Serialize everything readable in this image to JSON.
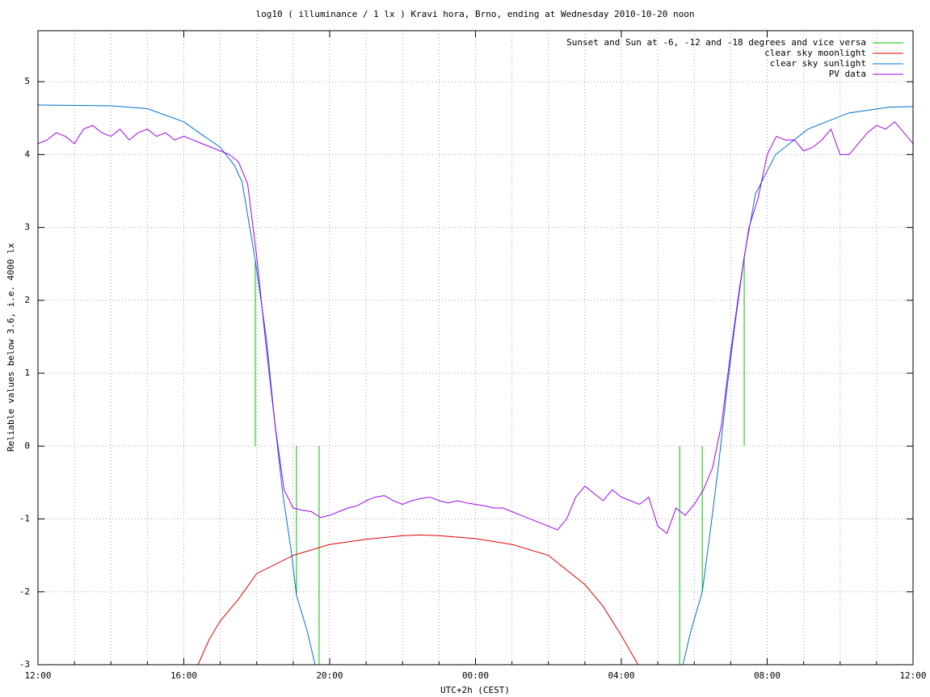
{
  "chart_data": {
    "type": "line",
    "title": "log10 ( illuminance / 1 lx ) Kravi hora, Brno, ending at Wednesday 2010-10-20 noon",
    "xlabel": "UTC+2h (CEST)",
    "ylabel": "Reliable values below 3.6, i.e. 4000 lx",
    "xlim": [
      0,
      24
    ],
    "ylim": [
      -3,
      5.7
    ],
    "xticks": [
      {
        "value": 0,
        "label": "12:00"
      },
      {
        "value": 4,
        "label": "16:00"
      },
      {
        "value": 8,
        "label": "20:00"
      },
      {
        "value": 12,
        "label": "00:00"
      },
      {
        "value": 16,
        "label": "04:00"
      },
      {
        "value": 20,
        "label": "08:00"
      },
      {
        "value": 24,
        "label": "12:00"
      }
    ],
    "xminorticks": [
      1,
      2,
      3,
      5,
      6,
      7,
      9,
      10,
      11,
      13,
      14,
      15,
      17,
      18,
      19,
      21,
      22,
      23
    ],
    "yticks": [
      -3,
      -2,
      -1,
      0,
      1,
      2,
      3,
      4,
      5
    ],
    "grid": true,
    "legend": "top-right",
    "series": [
      {
        "name": "Sunset and Sun at -6, -12 and -18 degrees and vice versa",
        "color": "#00c000",
        "style": "impulses",
        "x": [
          5.96,
          7.09,
          7.71,
          17.6,
          18.22,
          19.37
        ],
        "values": [
          2.55,
          -2.05,
          -3,
          -3,
          -2.0,
          2.6
        ]
      },
      {
        "name": "clear sky moonlight",
        "color": "#e00000",
        "style": "lines",
        "x": [
          4.39,
          4.7,
          5,
          5.5,
          6,
          7,
          8,
          9,
          10,
          10.5,
          11,
          12,
          13,
          14,
          15,
          15.5,
          16,
          16.46
        ],
        "values": [
          -3,
          -2.65,
          -2.4,
          -2.1,
          -1.75,
          -1.5,
          -1.35,
          -1.28,
          -1.23,
          -1.22,
          -1.23,
          -1.27,
          -1.35,
          -1.5,
          -1.9,
          -2.2,
          -2.6,
          -3
        ]
      },
      {
        "name": "clear sky sunlight",
        "color": "#0070d0",
        "style": "lines",
        "x": [
          0,
          2,
          3,
          4,
          4.39,
          5,
          5.39,
          5.6,
          5.96,
          6.27,
          6.49,
          6.71,
          6.94,
          7.09,
          7.38,
          7.6,
          12,
          17.69,
          17.9,
          18.22,
          18.46,
          18.68,
          18.9,
          19.12,
          19.37,
          19.68,
          20.23,
          21.12,
          22.23,
          23.33,
          24
        ],
        "values": [
          4.68,
          4.67,
          4.63,
          4.45,
          4.31,
          4.1,
          3.85,
          3.62,
          2.55,
          1.46,
          0.35,
          -0.64,
          -1.42,
          -2.05,
          -2.53,
          -3,
          null,
          -3,
          -2.55,
          -2.0,
          -1.09,
          -0.2,
          0.8,
          1.68,
          2.6,
          3.46,
          4.0,
          4.35,
          4.57,
          4.65,
          4.66
        ]
      },
      {
        "name": "PV data",
        "color": "#a000f0",
        "style": "lines",
        "x": [
          0,
          0.25,
          0.5,
          0.75,
          1,
          1.25,
          1.5,
          1.75,
          2,
          2.25,
          2.5,
          2.75,
          3,
          3.25,
          3.5,
          3.75,
          4,
          4.25,
          4.5,
          4.75,
          5,
          5.25,
          5.5,
          5.75,
          6,
          6.25,
          6.5,
          6.75,
          7,
          7.25,
          7.5,
          7.75,
          8,
          8.25,
          8.5,
          8.75,
          9,
          9.25,
          9.5,
          9.75,
          10,
          10.25,
          10.5,
          10.75,
          11,
          11.25,
          11.5,
          11.75,
          12,
          12.25,
          12.5,
          12.75,
          13,
          13.25,
          13.5,
          13.75,
          14,
          14.25,
          14.5,
          14.75,
          15,
          15.25,
          15.5,
          15.75,
          16,
          16.25,
          16.5,
          16.75,
          17,
          17.25,
          17.5,
          17.75,
          18,
          18.25,
          18.5,
          18.75,
          19,
          19.25,
          19.5,
          19.75,
          20,
          20.25,
          20.5,
          20.75,
          21,
          21.25,
          21.5,
          21.75,
          22,
          22.25,
          22.5,
          22.75,
          23,
          23.25,
          23.5,
          23.75,
          24
        ],
        "values": [
          4.15,
          4.2,
          4.3,
          4.25,
          4.15,
          4.35,
          4.4,
          4.3,
          4.25,
          4.35,
          4.2,
          4.3,
          4.35,
          4.25,
          4.3,
          4.2,
          4.25,
          4.2,
          4.15,
          4.1,
          4.05,
          4.0,
          3.9,
          3.6,
          2.6,
          1.4,
          0.3,
          -0.6,
          -0.85,
          -0.88,
          -0.9,
          -0.98,
          -0.95,
          -0.9,
          -0.85,
          -0.82,
          -0.75,
          -0.7,
          -0.68,
          -0.75,
          -0.8,
          -0.75,
          -0.72,
          -0.7,
          -0.75,
          -0.78,
          -0.75,
          -0.78,
          -0.8,
          -0.82,
          -0.85,
          -0.85,
          -0.9,
          -0.95,
          -1.0,
          -1.05,
          -1.1,
          -1.15,
          -1.0,
          -0.7,
          -0.55,
          -0.65,
          -0.75,
          -0.6,
          -0.7,
          -0.75,
          -0.8,
          -0.7,
          -1.1,
          -1.2,
          -0.85,
          -0.95,
          -0.8,
          -0.6,
          -0.3,
          0.3,
          1.3,
          2.2,
          3.0,
          3.4,
          4.0,
          4.25,
          4.2,
          4.2,
          4.05,
          4.1,
          4.2,
          4.35,
          4.0,
          4.0,
          4.15,
          4.3,
          4.4,
          4.35,
          4.45,
          4.3,
          4.15
        ]
      }
    ]
  }
}
